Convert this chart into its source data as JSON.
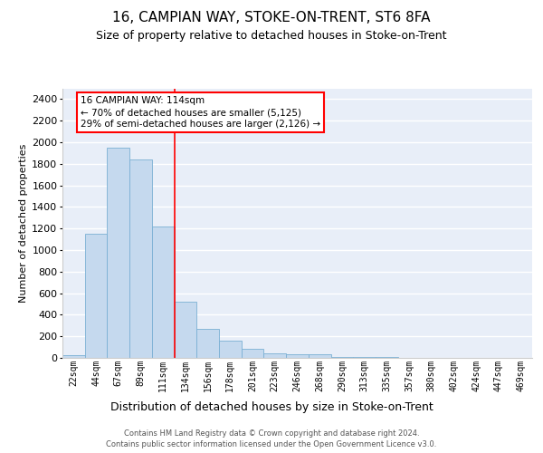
{
  "title": "16, CAMPIAN WAY, STOKE-ON-TRENT, ST6 8FA",
  "subtitle": "Size of property relative to detached houses in Stoke-on-Trent",
  "xlabel": "Distribution of detached houses by size in Stoke-on-Trent",
  "ylabel": "Number of detached properties",
  "footer_line1": "Contains HM Land Registry data © Crown copyright and database right 2024.",
  "footer_line2": "Contains public sector information licensed under the Open Government Licence v3.0.",
  "bar_labels": [
    "22sqm",
    "44sqm",
    "67sqm",
    "89sqm",
    "111sqm",
    "134sqm",
    "156sqm",
    "178sqm",
    "201sqm",
    "223sqm",
    "246sqm",
    "268sqm",
    "290sqm",
    "313sqm",
    "335sqm",
    "357sqm",
    "380sqm",
    "402sqm",
    "424sqm",
    "447sqm",
    "469sqm"
  ],
  "bar_values": [
    25,
    1150,
    1950,
    1840,
    1220,
    520,
    265,
    160,
    80,
    45,
    35,
    30,
    5,
    10,
    5,
    3,
    2,
    2,
    1,
    1,
    1
  ],
  "bar_color": "#c5d9ee",
  "bar_edge_color": "#7ab0d4",
  "ylim": [
    0,
    2500
  ],
  "yticks": [
    0,
    200,
    400,
    600,
    800,
    1000,
    1200,
    1400,
    1600,
    1800,
    2000,
    2200,
    2400
  ],
  "property_label": "16 CAMPIAN WAY: 114sqm",
  "annotation_line1": "← 70% of detached houses are smaller (5,125)",
  "annotation_line2": "29% of semi-detached houses are larger (2,126) →",
  "vline_bar_index": 4,
  "bg_color": "#e8eef8",
  "grid_color": "#ffffff",
  "title_fontsize": 11,
  "subtitle_fontsize": 9,
  "ylabel_fontsize": 8,
  "xlabel_fontsize": 9,
  "ytick_fontsize": 8,
  "xtick_fontsize": 7,
  "annot_fontsize": 7.5,
  "footer_fontsize": 6
}
